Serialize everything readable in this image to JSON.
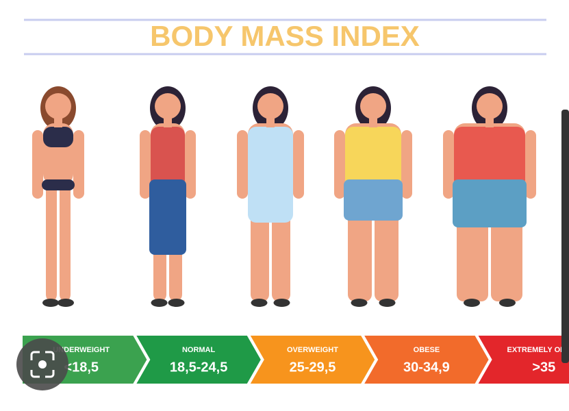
{
  "header": {
    "title": "BODY MASS INDEX"
  },
  "categories": [
    {
      "label": "UNDERWEIGHT",
      "range": "<18,5"
    },
    {
      "label": "NORMAL",
      "range": "18,5-24,5"
    },
    {
      "label": "OVERWEIGHT",
      "range": "25-29,5"
    },
    {
      "label": "OBESE",
      "range": "30-34,9"
    },
    {
      "label": "EXTREMELY OBESE",
      "range": ">35"
    }
  ]
}
